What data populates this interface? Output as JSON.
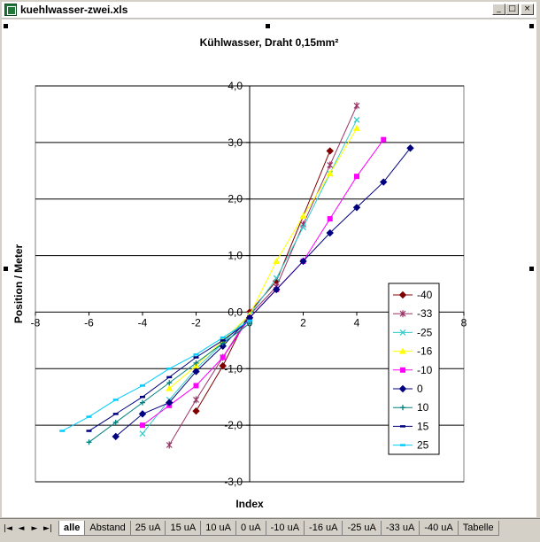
{
  "window": {
    "title": "kuehlwasser-zwei.xls"
  },
  "titlebar_buttons": {
    "minimize": "_",
    "maximize": "□",
    "close": "×"
  },
  "tab_nav": {
    "first": "|◄",
    "prev": "◄",
    "next": "►",
    "last": "►|"
  },
  "tabs": [
    "alle",
    "Abstand",
    "25 uA",
    "15 uA",
    "10 uA",
    "0 uA",
    "-10 uA",
    "-16 uA",
    "-25 uA",
    "-33 uA",
    "-40 uA",
    "Tabelle"
  ],
  "active_tab": "alle",
  "chart_data": {
    "type": "scatter",
    "title": "Kühlwasser, Draht 0,15mm²",
    "xlabel": "Index",
    "ylabel": "Position / Meter",
    "xlim": [
      -8,
      8
    ],
    "ylim": [
      -3,
      4
    ],
    "xticks": [
      -8,
      -6,
      -4,
      -2,
      0,
      2,
      4,
      6,
      8
    ],
    "yticks": [
      4,
      3,
      2,
      1,
      0,
      -1,
      -2,
      -3
    ],
    "ytick_labels": [
      "4,0",
      "3,0",
      "2,0",
      "1,0",
      "0,0",
      "-1,0",
      "-2,0",
      "-3,0"
    ],
    "grid": "horizontal major",
    "legend_position": "right",
    "series": [
      {
        "name": "-40",
        "color": "#800000",
        "marker": "diamond",
        "x": [
          -2,
          -1,
          0,
          1,
          3
        ],
        "y": [
          -1.75,
          -0.95,
          0,
          0.55,
          2.85
        ]
      },
      {
        "name": "-33",
        "color": "#993366",
        "marker": "star",
        "x": [
          -3,
          -2,
          -1,
          0,
          1,
          2,
          3,
          4
        ],
        "y": [
          -2.35,
          -1.55,
          -0.8,
          -0.05,
          0.45,
          1.55,
          2.6,
          3.65
        ]
      },
      {
        "name": "-25",
        "color": "#33cccc",
        "marker": "x",
        "x": [
          -4,
          -3,
          -2,
          -1,
          0,
          1,
          2,
          3,
          4
        ],
        "y": [
          -2.15,
          -1.55,
          -1.0,
          -0.55,
          -0.05,
          0.6,
          1.5,
          2.45,
          3.4
        ]
      },
      {
        "name": "-16",
        "color": "#ffff00",
        "marker": "triangle",
        "x": [
          -3,
          -2,
          -1,
          0,
          1,
          2,
          3,
          4
        ],
        "y": [
          -1.35,
          -0.95,
          -0.5,
          -0.05,
          0.9,
          1.7,
          2.45,
          3.25
        ]
      },
      {
        "name": "-10",
        "color": "#ff00ff",
        "marker": "square",
        "x": [
          -4,
          -3,
          -2,
          -1,
          0,
          1,
          2,
          3,
          4,
          5
        ],
        "y": [
          -2.0,
          -1.65,
          -1.3,
          -0.8,
          -0.1,
          0.4,
          0.9,
          1.65,
          2.4,
          3.05
        ]
      },
      {
        "name": "0",
        "color": "#000080",
        "marker": "diamond",
        "x": [
          -5,
          -4,
          -3,
          -2,
          -1,
          0,
          1,
          2,
          3,
          4,
          5,
          6
        ],
        "y": [
          -2.2,
          -1.8,
          -1.6,
          -1.05,
          -0.6,
          -0.1,
          0.4,
          0.9,
          1.4,
          1.85,
          2.3,
          2.9
        ]
      },
      {
        "name": "10",
        "color": "#008080",
        "marker": "plus",
        "x": [
          -6,
          -5,
          -4,
          -3,
          -2,
          -1,
          0
        ],
        "y": [
          -2.3,
          -1.95,
          -1.6,
          -1.25,
          -0.9,
          -0.55,
          -0.2
        ]
      },
      {
        "name": "15",
        "color": "#000080",
        "marker": "dash",
        "x": [
          -6,
          -5,
          -4,
          -3,
          -2,
          -1,
          0
        ],
        "y": [
          -2.1,
          -1.8,
          -1.5,
          -1.15,
          -0.8,
          -0.5,
          -0.15
        ]
      },
      {
        "name": "25",
        "color": "#00ccff",
        "marker": "dash",
        "x": [
          -7,
          -6,
          -5,
          -4,
          -3,
          -2,
          -1,
          0
        ],
        "y": [
          -2.1,
          -1.85,
          -1.55,
          -1.3,
          -1.0,
          -0.75,
          -0.45,
          -0.15
        ]
      }
    ]
  }
}
